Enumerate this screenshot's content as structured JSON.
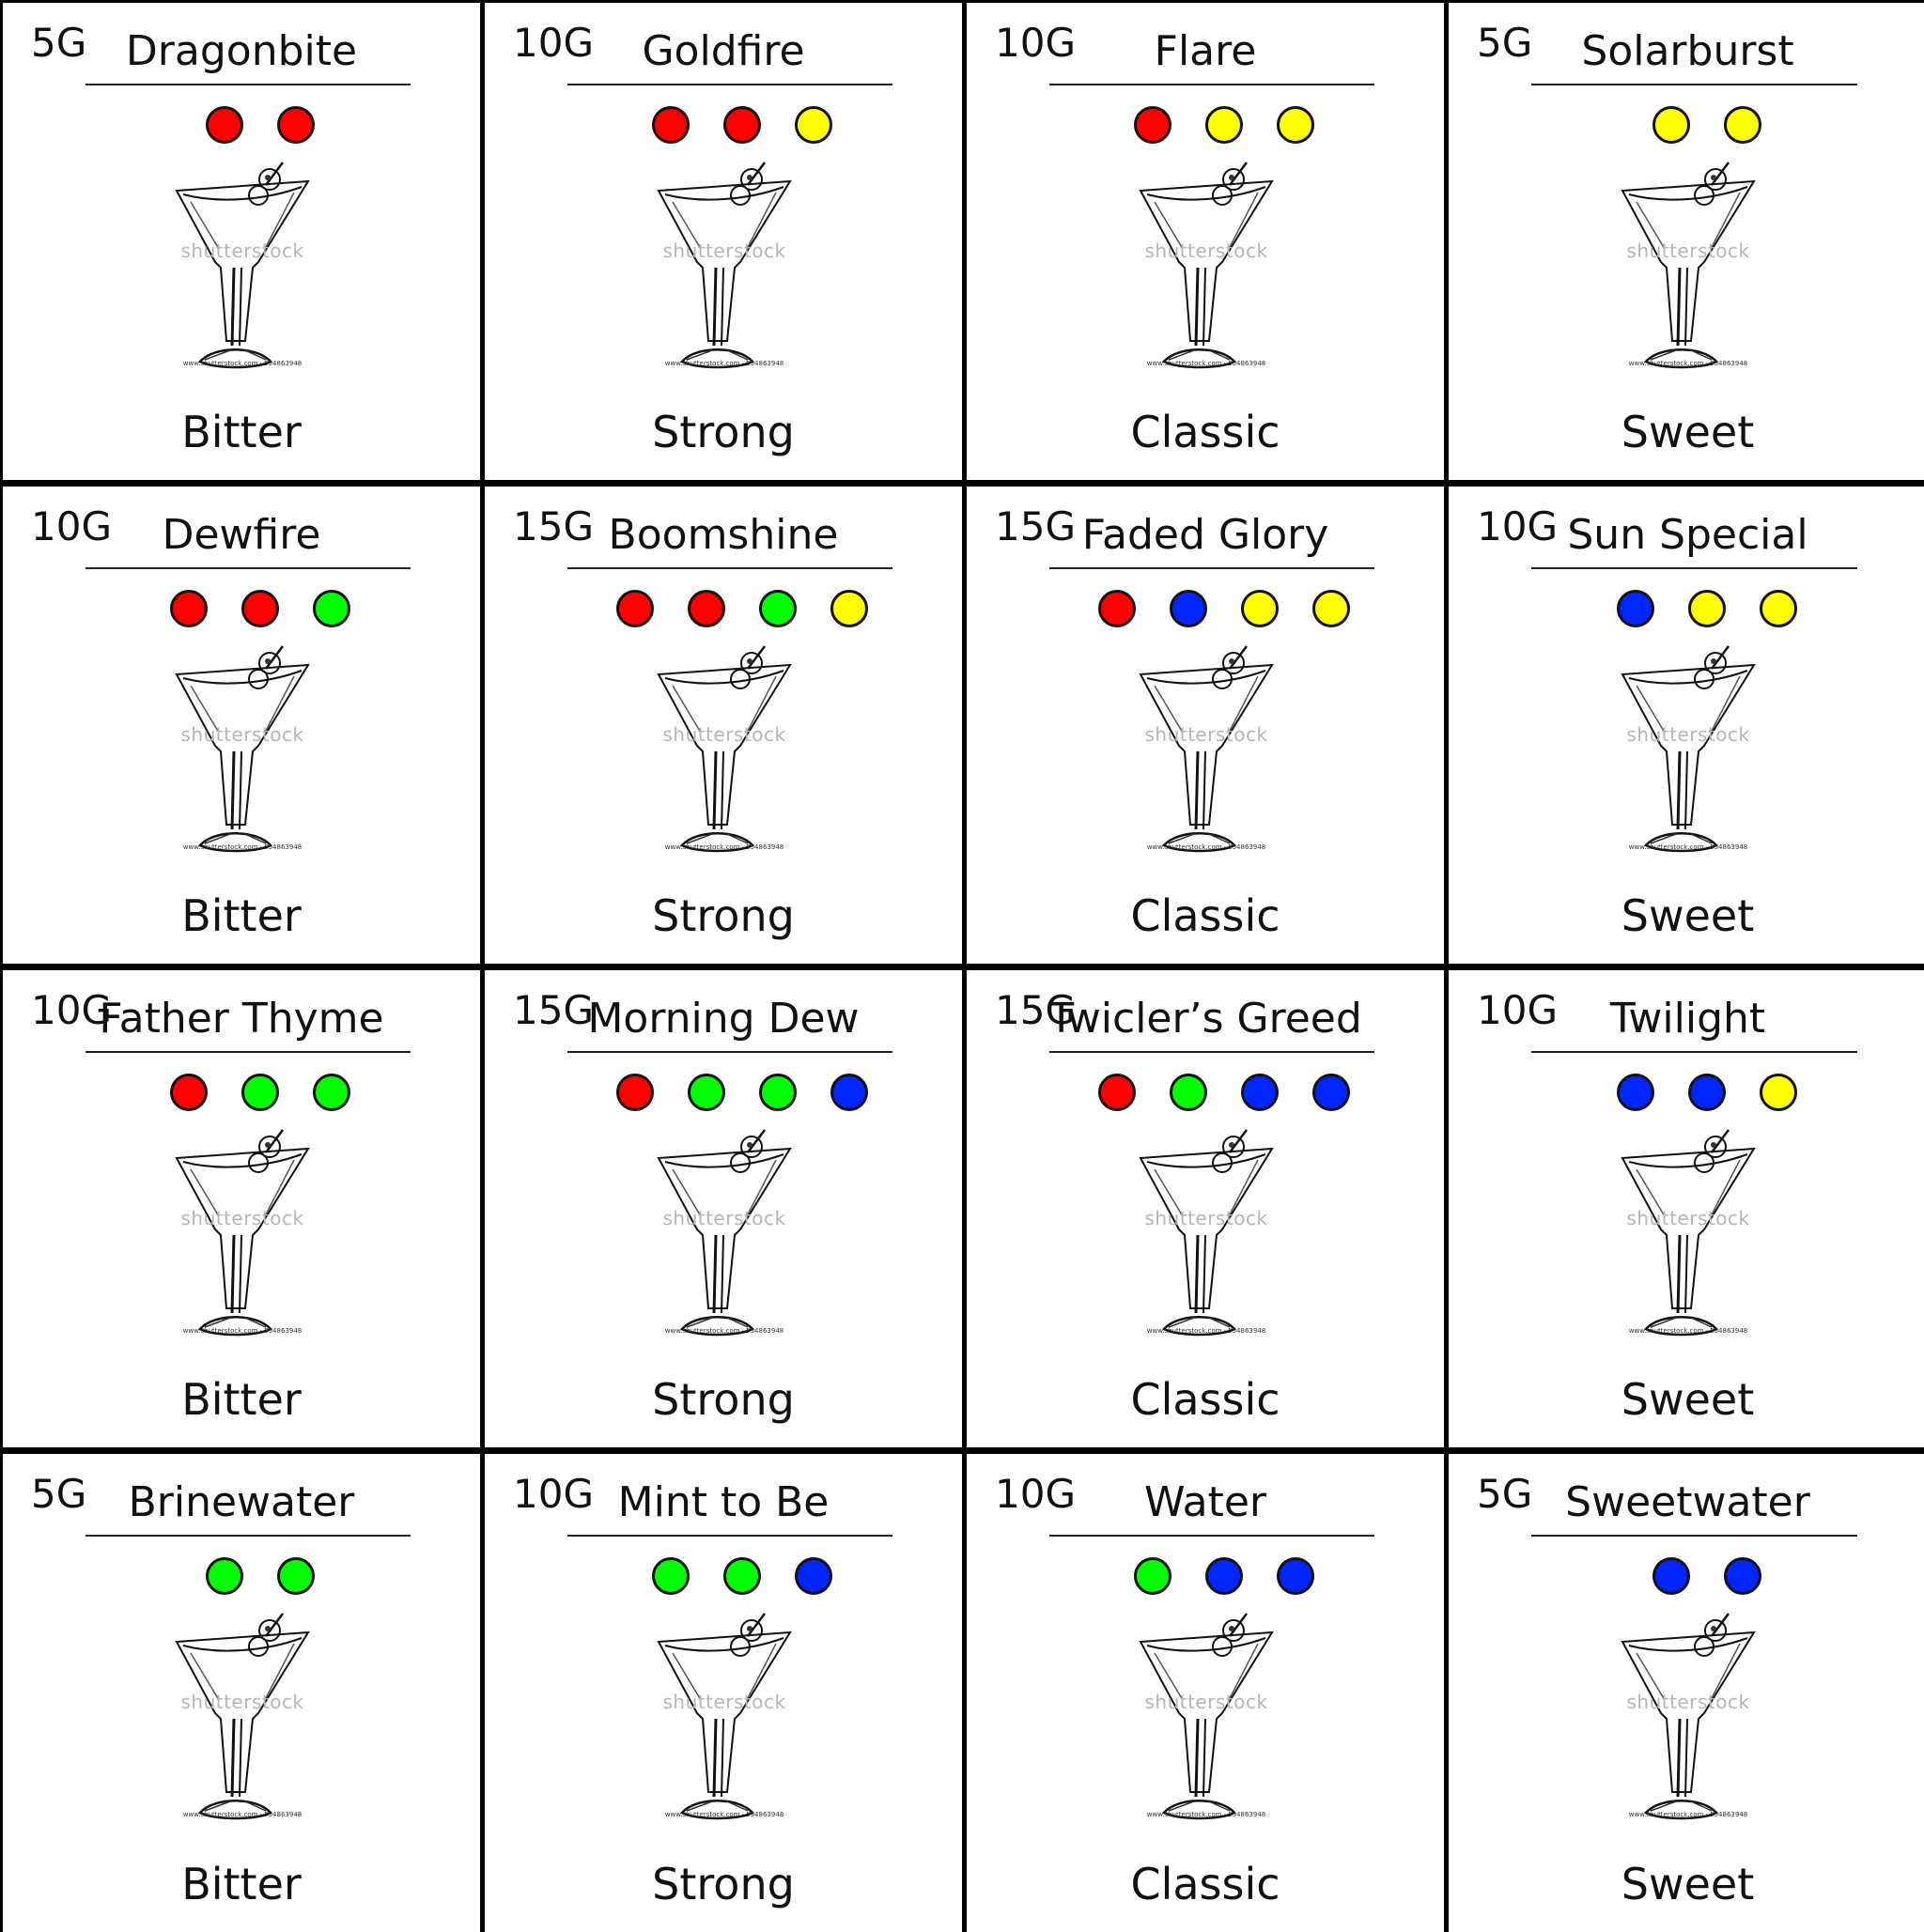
{
  "colors": {
    "red": "#ff0000",
    "yellow": "#ffff00",
    "green": "#00ff00",
    "blue": "#0026ff"
  },
  "watermark": "shutterstock",
  "watermark_id": "www.shutterstock.com · 554863948",
  "cards": [
    {
      "cost": "5G",
      "name": "Dragonbite",
      "dots": [
        "red",
        "red"
      ],
      "flavor": "Bitter"
    },
    {
      "cost": "10G",
      "name": "Goldfire",
      "dots": [
        "red",
        "red",
        "yellow"
      ],
      "flavor": "Strong"
    },
    {
      "cost": "10G",
      "name": "Flare",
      "dots": [
        "red",
        "yellow",
        "yellow"
      ],
      "flavor": "Classic"
    },
    {
      "cost": "5G",
      "name": "Solarburst",
      "dots": [
        "yellow",
        "yellow"
      ],
      "flavor": "Sweet"
    },
    {
      "cost": "10G",
      "name": "Dewfire",
      "dots": [
        "red",
        "red",
        "green"
      ],
      "flavor": "Bitter"
    },
    {
      "cost": "15G",
      "name": "Boomshine",
      "dots": [
        "red",
        "red",
        "green",
        "yellow"
      ],
      "flavor": "Strong"
    },
    {
      "cost": "15G",
      "name": "Faded Glory",
      "dots": [
        "red",
        "blue",
        "yellow",
        "yellow"
      ],
      "flavor": "Classic"
    },
    {
      "cost": "10G",
      "name": "Sun Special",
      "dots": [
        "blue",
        "yellow",
        "yellow"
      ],
      "flavor": "Sweet"
    },
    {
      "cost": "10G",
      "name": "Father Thyme",
      "dots": [
        "red",
        "green",
        "green"
      ],
      "flavor": "Bitter"
    },
    {
      "cost": "15G",
      "name": "Morning Dew",
      "dots": [
        "red",
        "green",
        "green",
        "blue"
      ],
      "flavor": "Strong"
    },
    {
      "cost": "15G",
      "name": "Twicler’s Greed",
      "dots": [
        "red",
        "green",
        "blue",
        "blue"
      ],
      "flavor": "Classic"
    },
    {
      "cost": "10G",
      "name": "Twilight",
      "dots": [
        "blue",
        "blue",
        "yellow"
      ],
      "flavor": "Sweet"
    },
    {
      "cost": "5G",
      "name": "Brinewater",
      "dots": [
        "green",
        "green"
      ],
      "flavor": "Bitter"
    },
    {
      "cost": "10G",
      "name": "Mint to Be",
      "dots": [
        "green",
        "green",
        "blue"
      ],
      "flavor": "Strong"
    },
    {
      "cost": "10G",
      "name": "Water",
      "dots": [
        "green",
        "blue",
        "blue"
      ],
      "flavor": "Classic"
    },
    {
      "cost": "5G",
      "name": "Sweetwater",
      "dots": [
        "blue",
        "blue"
      ],
      "flavor": "Sweet"
    }
  ]
}
